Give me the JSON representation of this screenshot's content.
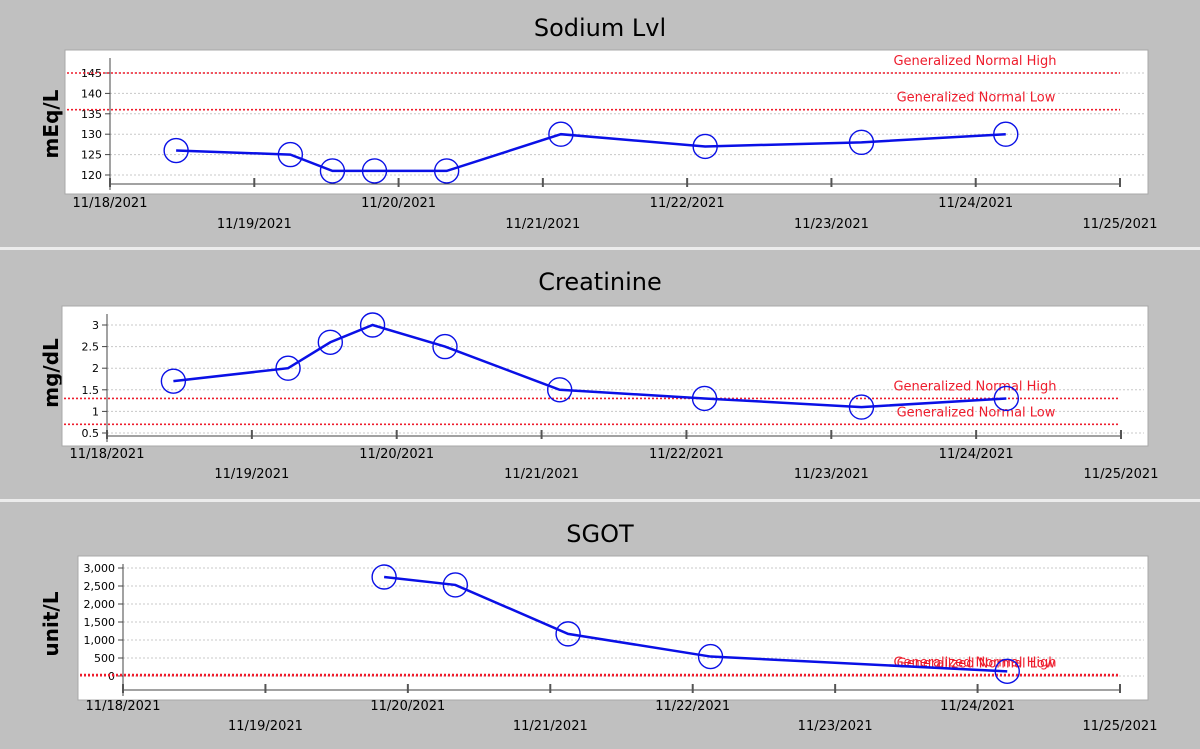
{
  "chart_data": [
    {
      "type": "line",
      "title": "Sodium Lvl",
      "ylabel": "mEq/L",
      "xlabel": "",
      "x_range": [
        "11/18/2021",
        "11/25/2021"
      ],
      "y_ticks": [
        120,
        125,
        130,
        135,
        140,
        145
      ],
      "ylim": [
        117.5,
        147.5
      ],
      "y_tick_format": "plain",
      "x_tick_labels": [
        "11/18/2021",
        "11/19/2021",
        "11/20/2021",
        "11/21/2021",
        "11/22/2021",
        "11/23/2021",
        "11/24/2021",
        "11/25/2021"
      ],
      "grid": true,
      "series": [
        {
          "x": [
            "2021-11-18T11:00",
            "2021-11-19T06:00",
            "2021-11-19T13:00",
            "2021-11-19T20:00",
            "2021-11-20T08:00",
            "2021-11-21T03:00",
            "2021-11-22T03:00",
            "2021-11-23T05:00",
            "2021-11-24T05:00"
          ],
          "y": [
            126,
            125,
            121,
            121,
            121,
            130,
            127,
            128,
            130
          ],
          "color": "#0a10e6"
        }
      ],
      "reference_lines": [
        {
          "label": "Generalized Normal High",
          "value": 145,
          "color": "#ee1c2c"
        },
        {
          "label": "Generalized Normal Low",
          "value": 136,
          "color": "#ee1c2c"
        }
      ]
    },
    {
      "type": "line",
      "title": "Creatinine",
      "ylabel": "mg/dL",
      "xlabel": "",
      "x_range": [
        "11/18/2021",
        "11/25/2021"
      ],
      "y_ticks": [
        0.5,
        1,
        1.5,
        2,
        2.5,
        3
      ],
      "ylim": [
        0.25,
        3.25
      ],
      "y_tick_format": "plain",
      "x_tick_labels": [
        "11/18/2021",
        "11/19/2021",
        "11/20/2021",
        "11/21/2021",
        "11/22/2021",
        "11/23/2021",
        "11/24/2021",
        "11/25/2021"
      ],
      "grid": true,
      "series": [
        {
          "x": [
            "2021-11-18T11:00",
            "2021-11-19T06:00",
            "2021-11-19T13:00",
            "2021-11-19T20:00",
            "2021-11-20T08:00",
            "2021-11-21T03:00",
            "2021-11-22T03:00",
            "2021-11-23T05:00",
            "2021-11-24T05:00"
          ],
          "y": [
            1.7,
            2.0,
            2.6,
            3.0,
            2.5,
            1.5,
            1.3,
            1.1,
            1.3
          ],
          "color": "#0a10e6"
        }
      ],
      "reference_lines": [
        {
          "label": "Generalized Normal High",
          "value": 1.3,
          "color": "#ee1c2c"
        },
        {
          "label": "Generalized Normal Low",
          "value": 0.7,
          "color": "#ee1c2c"
        }
      ]
    },
    {
      "type": "line",
      "title": "SGOT",
      "ylabel": "unit/L",
      "xlabel": "",
      "x_range": [
        "11/18/2021",
        "11/25/2021"
      ],
      "y_ticks": [
        0,
        500,
        1000,
        1500,
        2000,
        2500,
        3000
      ],
      "ylim": [
        -250,
        3250
      ],
      "y_tick_format": "thousands",
      "x_tick_labels": [
        "11/18/2021",
        "11/19/2021",
        "11/20/2021",
        "11/21/2021",
        "11/22/2021",
        "11/23/2021",
        "11/24/2021",
        "11/25/2021"
      ],
      "grid": true,
      "series": [
        {
          "x": [
            "2021-11-19T20:00",
            "2021-11-20T08:00",
            "2021-11-21T03:00",
            "2021-11-22T03:00",
            "2021-11-24T05:00"
          ],
          "y": [
            2750,
            2530,
            1170,
            540,
            130
          ],
          "color": "#0a10e6"
        }
      ],
      "reference_lines": [
        {
          "label": "Generalized Normal High",
          "value": 40,
          "color": "#ee1c2c"
        },
        {
          "label": "Generalized Normal Low",
          "value": 10,
          "color": "#ee1c2c"
        }
      ]
    }
  ]
}
